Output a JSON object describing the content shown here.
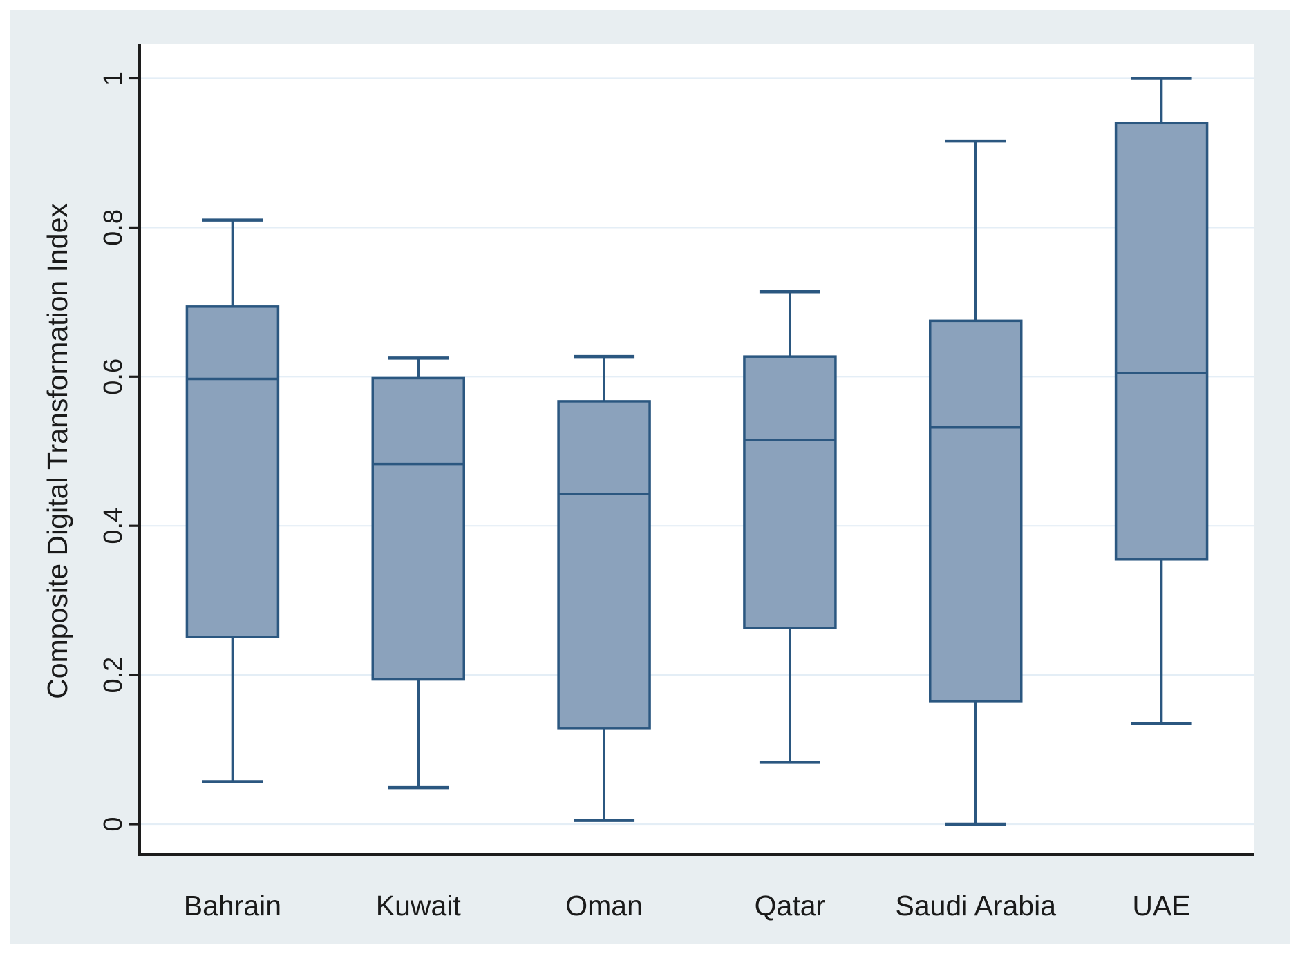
{
  "chart_data": {
    "type": "box",
    "title": "",
    "xlabel": "",
    "ylabel": "Composite Digital Transformation Index",
    "ylim": [
      0,
      1
    ],
    "yticks": [
      0,
      0.2,
      0.4,
      0.6,
      0.8,
      1
    ],
    "ytick_labels": [
      "0",
      "0.2",
      "0.4",
      "0.6",
      "0.8",
      "1"
    ],
    "grid": true,
    "legend": false,
    "categories": [
      "Bahrain",
      "Kuwait",
      "Oman",
      "Qatar",
      "Saudi Arabia",
      "UAE"
    ],
    "series": [
      {
        "name": "Bahrain",
        "min": 0.057,
        "q1": 0.251,
        "median": 0.597,
        "q3": 0.694,
        "max": 0.81
      },
      {
        "name": "Kuwait",
        "min": 0.049,
        "q1": 0.194,
        "median": 0.483,
        "q3": 0.598,
        "max": 0.625
      },
      {
        "name": "Oman",
        "min": 0.005,
        "q1": 0.128,
        "median": 0.443,
        "q3": 0.567,
        "max": 0.627
      },
      {
        "name": "Qatar",
        "min": 0.083,
        "q1": 0.263,
        "median": 0.515,
        "q3": 0.627,
        "max": 0.714
      },
      {
        "name": "Saudi Arabia",
        "min": 0.0,
        "q1": 0.165,
        "median": 0.532,
        "q3": 0.675,
        "max": 0.916
      },
      {
        "name": "UAE",
        "min": 0.135,
        "q1": 0.355,
        "median": 0.605,
        "q3": 0.94,
        "max": 1.0
      }
    ],
    "style": {
      "panel_background": "#e8eef1",
      "plot_background": "#ffffff",
      "grid_color": "#e4eef6",
      "box_fill": "#8ba2bc",
      "box_stroke": "#2b5780",
      "axis_color": "#1c1c1c",
      "text_color": "#1a1a1a"
    }
  }
}
